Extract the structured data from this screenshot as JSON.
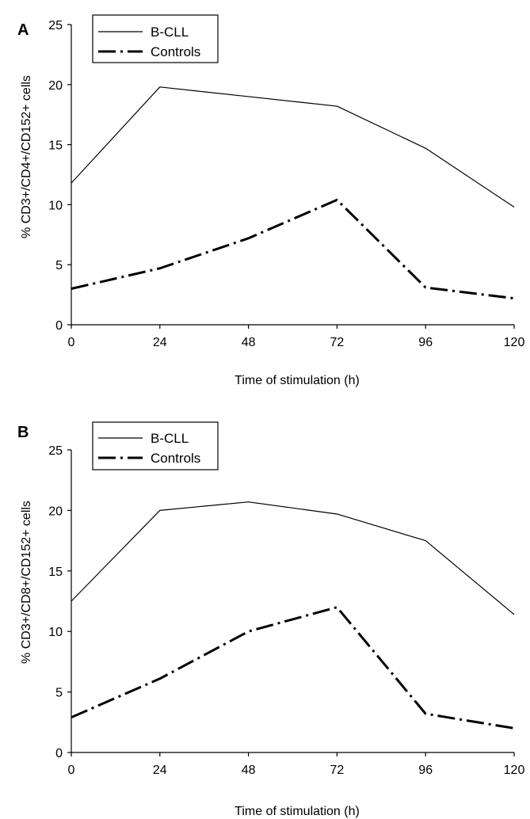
{
  "chart_data": [
    {
      "panel": "A",
      "type": "line",
      "x": [
        0,
        24,
        48,
        72,
        96,
        120
      ],
      "x_ticks": [
        "0",
        "24",
        "48",
        "72",
        "96",
        "120"
      ],
      "y_ticks": [
        "0",
        "5",
        "10",
        "15",
        "20",
        "25"
      ],
      "xlabel": "Time of stimulation (h)",
      "ylabel": "% CD3+/CD4+/CD152+ cells",
      "xlim": [
        0,
        120
      ],
      "ylim": [
        0,
        25
      ],
      "grid": false,
      "legend_position": "top-left",
      "series": [
        {
          "name": "B-CLL",
          "style": "solid",
          "values": [
            11.8,
            19.8,
            19.0,
            18.2,
            14.7,
            9.8
          ]
        },
        {
          "name": "Controls",
          "style": "dash-dot",
          "values": [
            3.0,
            4.7,
            7.2,
            10.4,
            3.1,
            2.2
          ]
        }
      ]
    },
    {
      "panel": "B",
      "type": "line",
      "x": [
        0,
        24,
        48,
        72,
        96,
        120
      ],
      "x_ticks": [
        "0",
        "24",
        "48",
        "72",
        "96",
        "120"
      ],
      "y_ticks": [
        "0",
        "5",
        "10",
        "15",
        "20",
        "25"
      ],
      "xlabel": "Time of stimulation (h)",
      "ylabel": "% CD3+/CD8+/CD152+ cells",
      "xlim": [
        0,
        120
      ],
      "ylim": [
        0,
        25
      ],
      "grid": false,
      "legend_position": "top-left",
      "series": [
        {
          "name": "B-CLL",
          "style": "solid",
          "values": [
            12.5,
            20.0,
            20.7,
            19.7,
            17.5,
            11.4
          ]
        },
        {
          "name": "Controls",
          "style": "dash-dot",
          "values": [
            2.9,
            6.1,
            10.0,
            12.0,
            3.2,
            2.0
          ]
        }
      ]
    }
  ]
}
